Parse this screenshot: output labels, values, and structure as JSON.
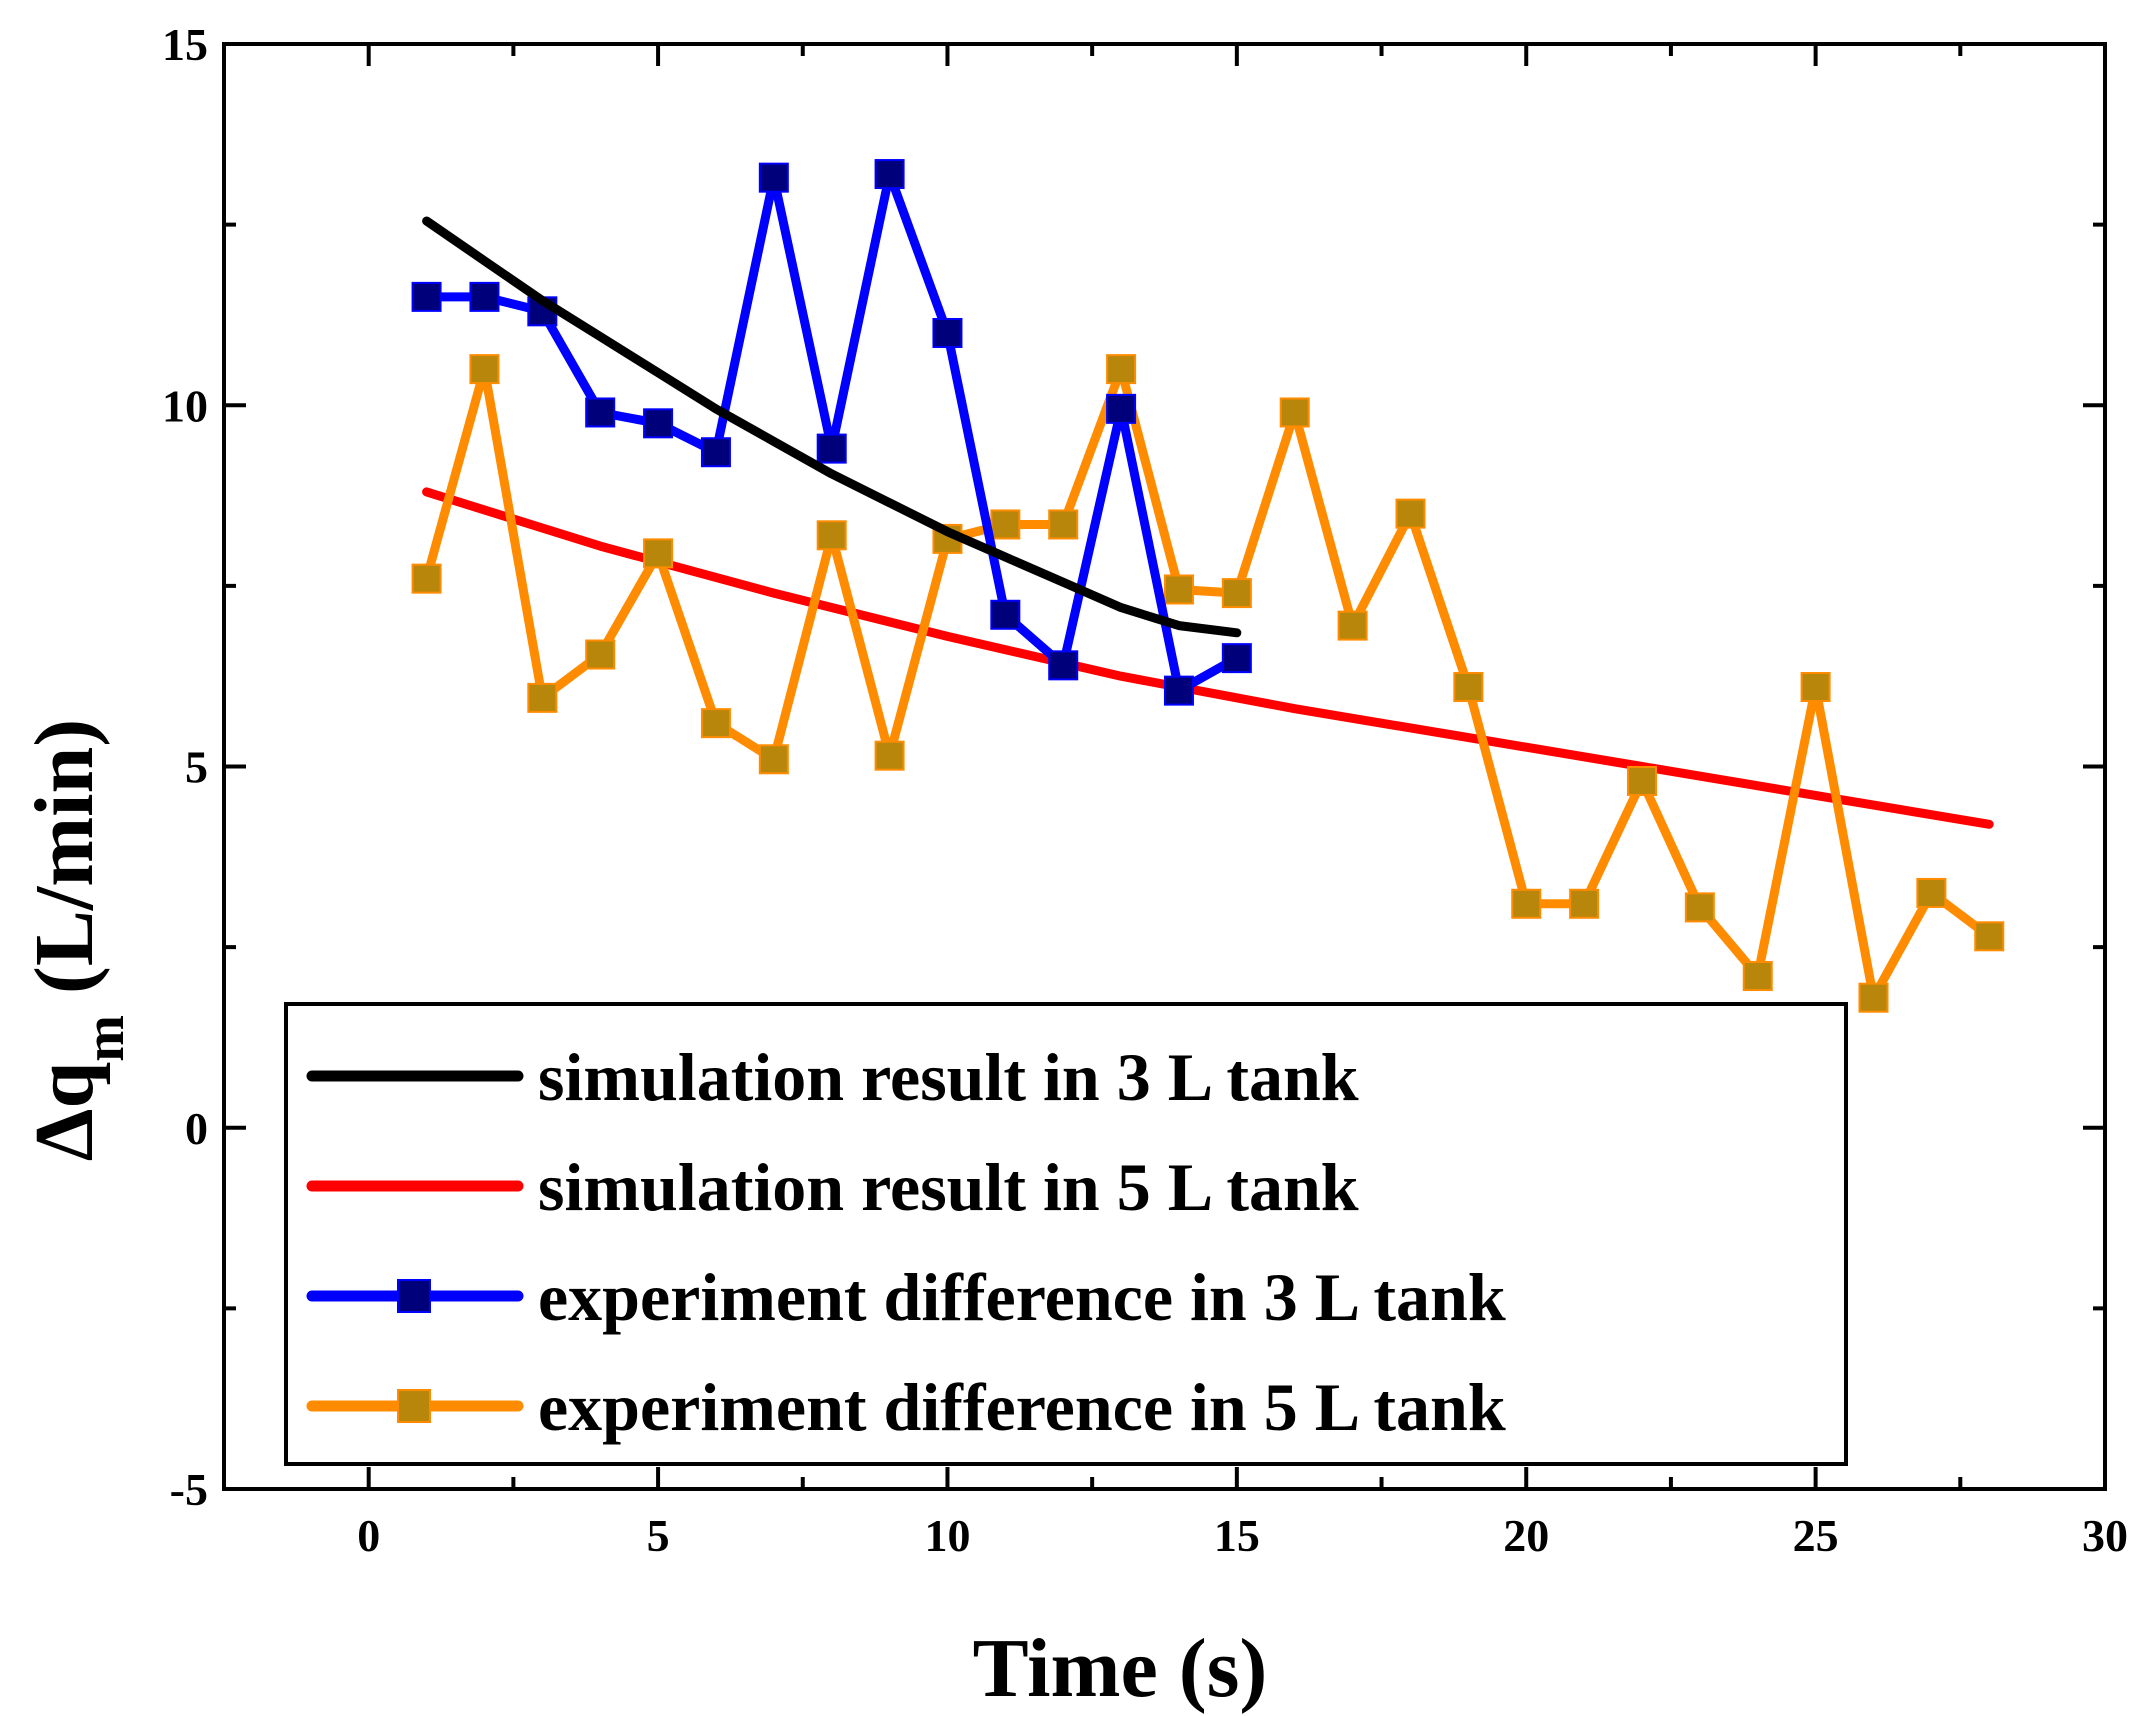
{
  "chart_data": {
    "type": "line",
    "title": "",
    "xlabel": "Time (s)",
    "ylabel": "Δq",
    "ylabel_subscript": "m",
    "ylabel_unit": " (L/min)",
    "xlim": [
      -2.5,
      30
    ],
    "ylim": [
      -5,
      15
    ],
    "xticks": [
      0,
      5,
      10,
      15,
      20,
      25,
      30
    ],
    "yticks": [
      -5,
      0,
      5,
      10,
      15
    ],
    "xtick_labels": [
      "0",
      "5",
      "10",
      "15",
      "20",
      "25",
      "30"
    ],
    "ytick_labels": [
      "-5",
      "0",
      "5",
      "10",
      "15"
    ],
    "grid": false,
    "legend_position": "bottom-left",
    "series": [
      {
        "name": "simulation result in 3 L tank",
        "color": "#000000",
        "marker": "none",
        "x": [
          1,
          2,
          3,
          4,
          5,
          6,
          7,
          8,
          9,
          10,
          11,
          12,
          13,
          14,
          15
        ],
        "y": [
          12.55,
          12.0,
          11.45,
          10.95,
          10.45,
          9.95,
          9.5,
          9.05,
          8.65,
          8.25,
          7.9,
          7.55,
          7.2,
          6.95,
          6.85
        ]
      },
      {
        "name": "simulation result in 5 L tank",
        "color": "#ff0000",
        "marker": "none",
        "x": [
          1,
          4,
          7,
          10,
          13,
          16,
          19,
          22,
          25,
          28
        ],
        "y": [
          8.8,
          8.05,
          7.4,
          6.8,
          6.25,
          5.8,
          5.4,
          5.0,
          4.6,
          4.2
        ]
      },
      {
        "name": "experiment difference in 3 L tank",
        "color": "#0000ff",
        "marker_color": "#00007a",
        "marker": "square",
        "x": [
          1,
          2,
          3,
          4,
          5,
          6,
          7,
          8,
          9,
          10,
          11,
          12,
          13,
          14,
          15
        ],
        "y": [
          11.5,
          11.5,
          11.3,
          9.9,
          9.75,
          9.35,
          13.15,
          9.4,
          13.2,
          11.0,
          7.1,
          6.4,
          9.95,
          6.05,
          6.5
        ]
      },
      {
        "name": "experiment difference in 5 L tank",
        "color": "#ff8c00",
        "marker_color": "#b8860b",
        "marker": "square",
        "x": [
          1,
          2,
          3,
          4,
          5,
          6,
          7,
          8,
          9,
          10,
          11,
          12,
          13,
          14,
          15,
          16,
          17,
          18,
          19,
          20,
          21,
          22,
          23,
          24,
          25,
          26,
          27,
          28
        ],
        "y": [
          7.6,
          10.5,
          5.95,
          6.55,
          7.95,
          5.6,
          5.1,
          8.2,
          5.15,
          8.15,
          8.35,
          8.35,
          10.5,
          7.45,
          7.4,
          9.9,
          6.95,
          8.5,
          6.1,
          3.1,
          3.1,
          4.8,
          3.05,
          2.1,
          6.1,
          1.8,
          3.25,
          2.65
        ]
      }
    ]
  }
}
